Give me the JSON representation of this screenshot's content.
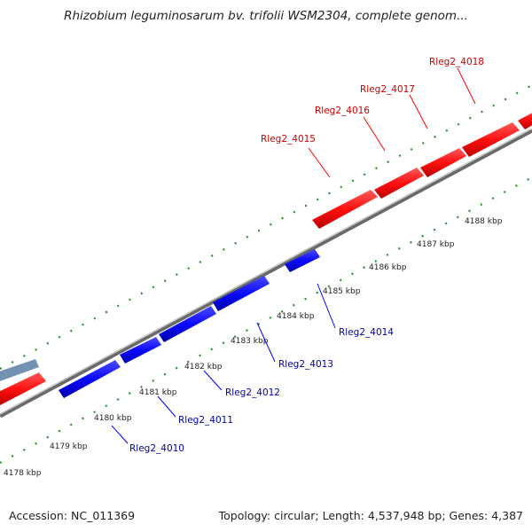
{
  "header": {
    "title": "Rhizobium leguminosarum bv. trifolii WSM2304, complete genom..."
  },
  "footer": {
    "accession": "Accession: NC_011369",
    "summary": "Topology: circular; Length: 4,537,948 bp; Genes: 4,387"
  },
  "colors": {
    "forward_gene": "#ff0000",
    "reverse_gene": "#0000ff",
    "backbone": "#8a8a8a",
    "tick": "#2e8b2e",
    "forward_label": "#cc0000",
    "reverse_label": "#0000aa"
  },
  "scale_ticks": [
    {
      "label": "4178 kbp"
    },
    {
      "label": "4179 kbp"
    },
    {
      "label": "4180 kbp"
    },
    {
      "label": "4181 kbp"
    },
    {
      "label": "4182 kbp"
    },
    {
      "label": "4183 kbp"
    },
    {
      "label": "4184 kbp"
    },
    {
      "label": "4185 kbp"
    },
    {
      "label": "4186 kbp"
    },
    {
      "label": "4187 kbp"
    },
    {
      "label": "4188 kbp"
    }
  ],
  "genes": {
    "forward": [
      {
        "label": "Rleg2_4015"
      },
      {
        "label": "Rleg2_4016"
      },
      {
        "label": "Rleg2_4017"
      },
      {
        "label": "Rleg2_4018"
      }
    ],
    "reverse": [
      {
        "label": "Rleg2_4010"
      },
      {
        "label": "Rleg2_4011"
      },
      {
        "label": "Rleg2_4012"
      },
      {
        "label": "Rleg2_4013"
      },
      {
        "label": "Rleg2_4014"
      }
    ]
  }
}
